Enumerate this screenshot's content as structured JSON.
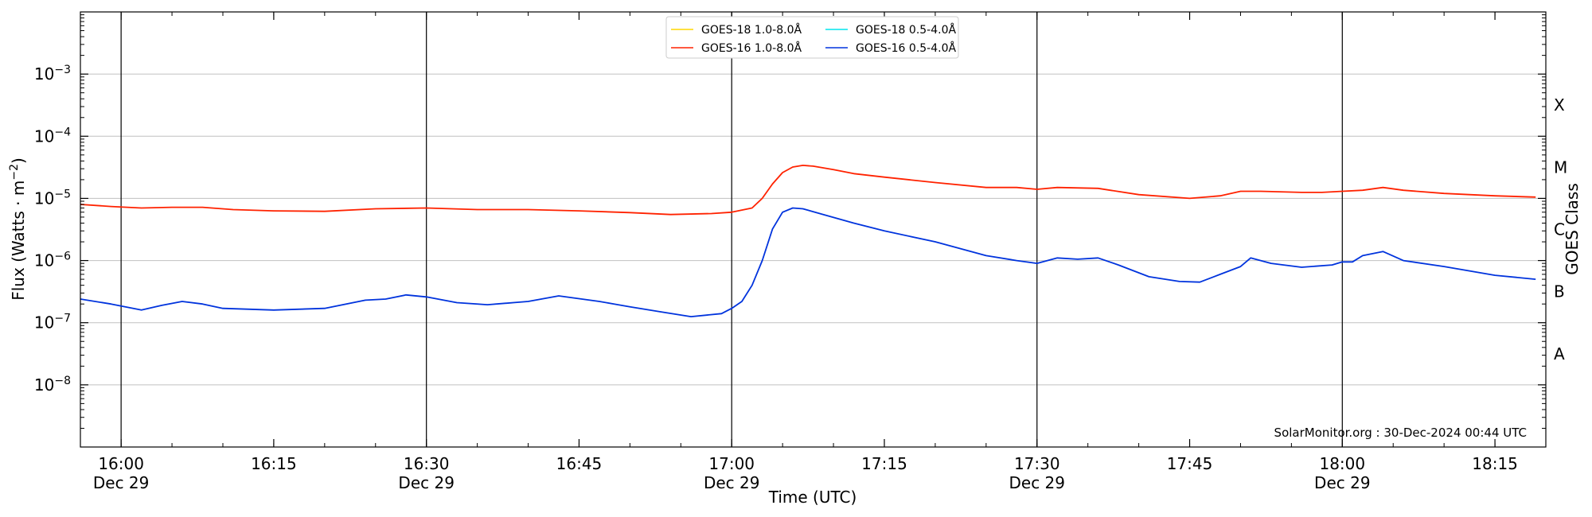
{
  "chart_data": {
    "type": "line",
    "title": "",
    "xlabel": "Time (UTC)",
    "ylabel": "Flux (Watts · m⁻²)",
    "y2label": "GOES Class",
    "yscale": "log",
    "xlim": [
      "2024-12-29 15:56",
      "2024-12-29 18:20"
    ],
    "ylim": [
      1e-09,
      0.01
    ],
    "grid": "horizontal",
    "legend_placement": "top-center",
    "x_ticks": [
      {
        "time": "2024-12-29 16:00",
        "label": "16:00",
        "date": "Dec 29"
      },
      {
        "time": "2024-12-29 16:15",
        "label": "16:15",
        "date": ""
      },
      {
        "time": "2024-12-29 16:30",
        "label": "16:30",
        "date": "Dec 29"
      },
      {
        "time": "2024-12-29 16:45",
        "label": "16:45",
        "date": ""
      },
      {
        "time": "2024-12-29 17:00",
        "label": "17:00",
        "date": "Dec 29"
      },
      {
        "time": "2024-12-29 17:15",
        "label": "17:15",
        "date": ""
      },
      {
        "time": "2024-12-29 17:30",
        "label": "17:30",
        "date": "Dec 29"
      },
      {
        "time": "2024-12-29 17:45",
        "label": "17:45",
        "date": ""
      },
      {
        "time": "2024-12-29 18:00",
        "label": "18:00",
        "date": "Dec 29"
      },
      {
        "time": "2024-12-29 18:15",
        "label": "18:15",
        "date": ""
      }
    ],
    "vertical_lines": [
      "2024-12-29 16:00",
      "2024-12-29 16:30",
      "2024-12-29 17:00",
      "2024-12-29 17:30",
      "2024-12-29 18:00"
    ],
    "y_ticks": [
      {
        "value": 1e-08,
        "base": "10",
        "exp": "−8"
      },
      {
        "value": 1e-07,
        "base": "10",
        "exp": "−7"
      },
      {
        "value": 1e-06,
        "base": "10",
        "exp": "−6"
      },
      {
        "value": 1e-05,
        "base": "10",
        "exp": "−5"
      },
      {
        "value": 0.0001,
        "base": "10",
        "exp": "−4"
      },
      {
        "value": 0.001,
        "base": "10",
        "exp": "−3"
      }
    ],
    "goes_classes": [
      {
        "label": "A",
        "value": 3.16e-08
      },
      {
        "label": "B",
        "value": 3.16e-07
      },
      {
        "label": "C",
        "value": 3.16e-06
      },
      {
        "label": "M",
        "value": 3.16e-05
      },
      {
        "label": "X",
        "value": 0.000316
      }
    ],
    "annotation": "SolarMonitor.org : 30-Dec-2024 00:44 UTC",
    "series": [
      {
        "name": "GOES-18 1.0-8.0Å",
        "color": "#ffd700",
        "x": [],
        "values": []
      },
      {
        "name": "GOES-18 0.5-4.0Å",
        "color": "#00e5ee",
        "x": [],
        "values": []
      },
      {
        "name": "GOES-16 1.0-8.0Å",
        "color": "#ff2200",
        "x": [
          "2024-12-29 15:56",
          "2024-12-29 15:59",
          "2024-12-29 16:02",
          "2024-12-29 16:05",
          "2024-12-29 16:08",
          "2024-12-29 16:11",
          "2024-12-29 16:15",
          "2024-12-29 16:20",
          "2024-12-29 16:25",
          "2024-12-29 16:30",
          "2024-12-29 16:35",
          "2024-12-29 16:40",
          "2024-12-29 16:45",
          "2024-12-29 16:50",
          "2024-12-29 16:54",
          "2024-12-29 16:58",
          "2024-12-29 17:00",
          "2024-12-29 17:02",
          "2024-12-29 17:03",
          "2024-12-29 17:04",
          "2024-12-29 17:05",
          "2024-12-29 17:06",
          "2024-12-29 17:07",
          "2024-12-29 17:08",
          "2024-12-29 17:10",
          "2024-12-29 17:12",
          "2024-12-29 17:15",
          "2024-12-29 17:20",
          "2024-12-29 17:25",
          "2024-12-29 17:28",
          "2024-12-29 17:30",
          "2024-12-29 17:32",
          "2024-12-29 17:36",
          "2024-12-29 17:40",
          "2024-12-29 17:45",
          "2024-12-29 17:48",
          "2024-12-29 17:50",
          "2024-12-29 17:52",
          "2024-12-29 17:56",
          "2024-12-29 17:58",
          "2024-12-29 18:00",
          "2024-12-29 18:02",
          "2024-12-29 18:04",
          "2024-12-29 18:06",
          "2024-12-29 18:10",
          "2024-12-29 18:15",
          "2024-12-29 18:19"
        ],
        "values": [
          8e-06,
          7.4e-06,
          7e-06,
          7.2e-06,
          7.2e-06,
          6.6e-06,
          6.3e-06,
          6.2e-06,
          6.8e-06,
          7e-06,
          6.6e-06,
          6.6e-06,
          6.3e-06,
          5.9e-06,
          5.5e-06,
          5.7e-06,
          6e-06,
          7e-06,
          1e-05,
          1.7e-05,
          2.6e-05,
          3.2e-05,
          3.4e-05,
          3.3e-05,
          2.9e-05,
          2.5e-05,
          2.2e-05,
          1.8e-05,
          1.5e-05,
          1.5e-05,
          1.4e-05,
          1.5e-05,
          1.45e-05,
          1.15e-05,
          1e-05,
          1.1e-05,
          1.3e-05,
          1.3e-05,
          1.25e-05,
          1.25e-05,
          1.3e-05,
          1.35e-05,
          1.5e-05,
          1.35e-05,
          1.2e-05,
          1.1e-05,
          1.05e-05
        ]
      },
      {
        "name": "GOES-16 0.5-4.0Å",
        "color": "#0033dd",
        "x": [
          "2024-12-29 15:56",
          "2024-12-29 15:59",
          "2024-12-29 16:02",
          "2024-12-29 16:04",
          "2024-12-29 16:06",
          "2024-12-29 16:08",
          "2024-12-29 16:10",
          "2024-12-29 16:15",
          "2024-12-29 16:20",
          "2024-12-29 16:24",
          "2024-12-29 16:26",
          "2024-12-29 16:28",
          "2024-12-29 16:30",
          "2024-12-29 16:33",
          "2024-12-29 16:36",
          "2024-12-29 16:40",
          "2024-12-29 16:43",
          "2024-12-29 16:47",
          "2024-12-29 16:50",
          "2024-12-29 16:53",
          "2024-12-29 16:56",
          "2024-12-29 16:59",
          "2024-12-29 17:00",
          "2024-12-29 17:01",
          "2024-12-29 17:02",
          "2024-12-29 17:03",
          "2024-12-29 17:04",
          "2024-12-29 17:05",
          "2024-12-29 17:06",
          "2024-12-29 17:07",
          "2024-12-29 17:09",
          "2024-12-29 17:12",
          "2024-12-29 17:15",
          "2024-12-29 17:20",
          "2024-12-29 17:25",
          "2024-12-29 17:28",
          "2024-12-29 17:30",
          "2024-12-29 17:32",
          "2024-12-29 17:34",
          "2024-12-29 17:36",
          "2024-12-29 17:38",
          "2024-12-29 17:41",
          "2024-12-29 17:44",
          "2024-12-29 17:46",
          "2024-12-29 17:48",
          "2024-12-29 17:50",
          "2024-12-29 17:51",
          "2024-12-29 17:53",
          "2024-12-29 17:56",
          "2024-12-29 17:59",
          "2024-12-29 18:00",
          "2024-12-29 18:01",
          "2024-12-29 18:02",
          "2024-12-29 18:04",
          "2024-12-29 18:06",
          "2024-12-29 18:10",
          "2024-12-29 18:15",
          "2024-12-29 18:19"
        ],
        "values": [
          2.4e-07,
          2e-07,
          1.6e-07,
          1.9e-07,
          2.2e-07,
          2e-07,
          1.7e-07,
          1.6e-07,
          1.7e-07,
          2.3e-07,
          2.4e-07,
          2.8e-07,
          2.6e-07,
          2.1e-07,
          1.95e-07,
          2.2e-07,
          2.7e-07,
          2.2e-07,
          1.8e-07,
          1.5e-07,
          1.25e-07,
          1.4e-07,
          1.7e-07,
          2.2e-07,
          4e-07,
          1e-06,
          3.2e-06,
          6e-06,
          7e-06,
          6.8e-06,
          5.5e-06,
          4e-06,
          3e-06,
          2e-06,
          1.2e-06,
          1e-06,
          9e-07,
          1.1e-06,
          1.05e-06,
          1.1e-06,
          8.5e-07,
          5.5e-07,
          4.6e-07,
          4.5e-07,
          6e-07,
          8e-07,
          1.1e-06,
          9e-07,
          7.8e-07,
          8.5e-07,
          9.5e-07,
          9.5e-07,
          1.2e-06,
          1.4e-06,
          1e-06,
          8e-07,
          5.8e-07,
          5e-07
        ]
      }
    ]
  }
}
